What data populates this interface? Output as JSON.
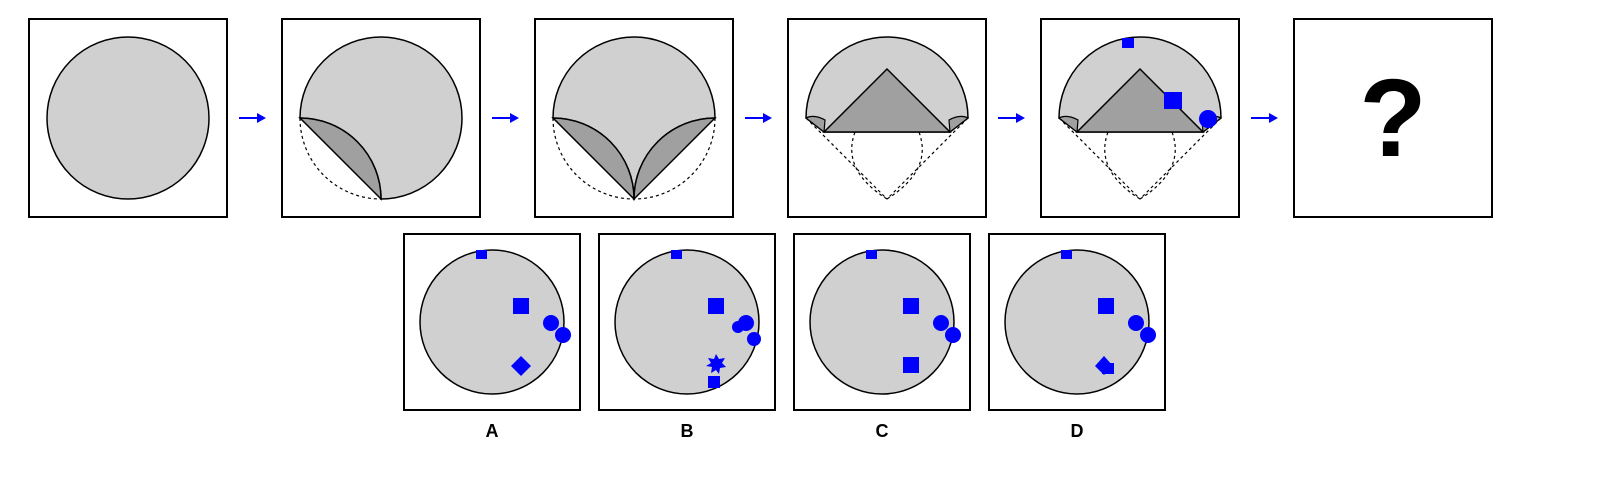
{
  "sequence": {
    "question_mark": "?"
  },
  "options": [
    {
      "label": "A"
    },
    {
      "label": "B"
    },
    {
      "label": "C"
    },
    {
      "label": "D"
    }
  ],
  "colors": {
    "circle_fill": "#d0d0d0",
    "fold_fill": "#a0a0a0",
    "marker": "#0000ff",
    "arrow": "#0000ff",
    "stroke": "#000000"
  }
}
